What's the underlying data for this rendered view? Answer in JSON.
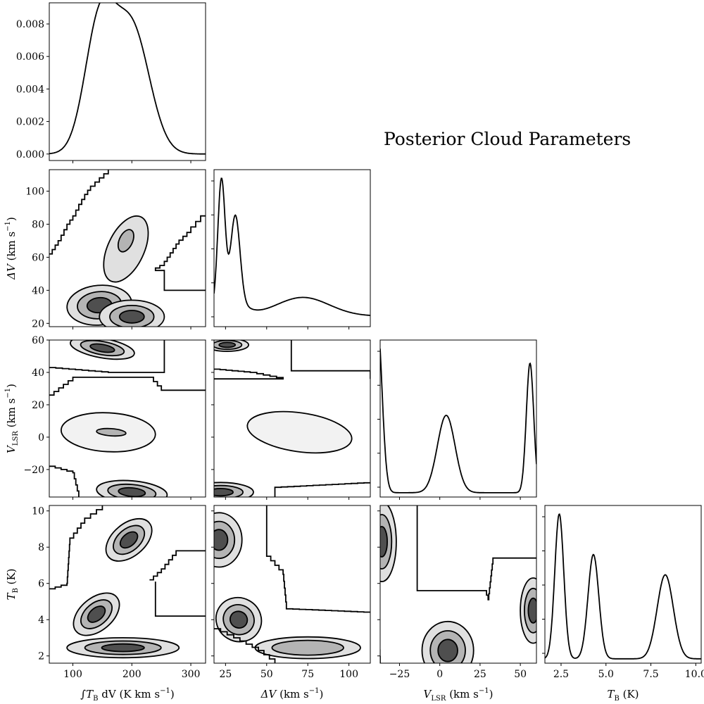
{
  "title": "Posterior Cloud Parameters",
  "colors": {
    "line": "#000000",
    "fill_levels": [
      "#f2f2f2",
      "#e0e0e0",
      "#b4b4b4",
      "#4f4f4f"
    ]
  },
  "chart_data": {
    "type": "corner",
    "params": [
      {
        "key": "flux",
        "label": "∫T B dV  (K km s⁻¹)",
        "range": [
          60,
          325
        ],
        "ticks": [
          100,
          200,
          300
        ],
        "ticklabels": [
          "100",
          "200",
          "300"
        ]
      },
      {
        "key": "dv",
        "label": "ΔV  (km s⁻¹)",
        "range": [
          18,
          113
        ],
        "ticks": [
          25,
          50,
          75,
          100
        ],
        "ticklabels": [
          "25",
          "50",
          "75",
          "100"
        ]
      },
      {
        "key": "vlsr",
        "label": "V LSR  (km s⁻¹)",
        "range": [
          -37,
          60
        ],
        "ticks": [
          -25,
          0,
          25,
          50
        ],
        "ticklabels": [
          "−25",
          "0",
          "25",
          "50"
        ]
      },
      {
        "key": "tb",
        "label": "T B  (K)",
        "range": [
          1.6,
          10.3
        ],
        "ticks": [
          2.5,
          5.0,
          7.5,
          10.0
        ],
        "ticklabels": [
          "2.5",
          "5.0",
          "7.5",
          "10.0"
        ]
      }
    ],
    "row_axes": {
      "dv": {
        "ticks": [
          20,
          40,
          60,
          80,
          100
        ],
        "ticklabels": [
          "20",
          "40",
          "60",
          "80",
          "100"
        ]
      },
      "vlsr": {
        "ticks": [
          -20,
          0,
          20,
          40,
          60
        ],
        "ticklabels": [
          "−20",
          "0",
          "20",
          "40",
          "60"
        ]
      },
      "tb": {
        "ticks": [
          2,
          4,
          6,
          8,
          10
        ],
        "ticklabels": [
          "2",
          "4",
          "6",
          "8",
          "10"
        ]
      }
    },
    "label_text": {
      "flux": {
        "pre": "∫",
        "sym": "T",
        "sub": "B",
        "post": " dV  (K km s",
        "exp": "−1",
        "end": ")"
      },
      "dv": {
        "pre": "",
        "sym": "ΔV",
        "sub": "",
        "post": "  (km s",
        "exp": "−1",
        "end": ")"
      },
      "vlsr": {
        "pre": "",
        "sym": "V",
        "sub": "LSR",
        "post": "  (km s",
        "exp": "−1",
        "end": ")"
      },
      "tb": {
        "pre": "",
        "sym": "T",
        "sub": "B",
        "post": "  (K)",
        "exp": "",
        "end": ""
      }
    },
    "flux_density": {
      "ylim": [
        -0.0004,
        0.0093
      ],
      "yticks": [
        0.0,
        0.002,
        0.004,
        0.006,
        0.008
      ],
      "yticklabels": [
        "0.000",
        "0.002",
        "0.004",
        "0.006",
        "0.008"
      ],
      "components": [
        {
          "mu": 145,
          "sigma": 25,
          "amp": 0.0078
        },
        {
          "mu": 200,
          "sigma": 30,
          "amp": 0.0077
        }
      ]
    },
    "dv_density": {
      "components": [
        {
          "mu": 22.5,
          "sigma": 2.2,
          "amp": 0.8
        },
        {
          "mu": 31,
          "sigma": 2.8,
          "amp": 0.55
        },
        {
          "mu": 28,
          "sigma": 8,
          "amp": 0.1
        },
        {
          "mu": 72,
          "sigma": 16,
          "amp": 0.12
        }
      ],
      "baseline": 0.04
    },
    "vlsr_density": {
      "components": [
        {
          "mu": -39,
          "sigma": 3,
          "amp": 1.0
        },
        {
          "mu": 4,
          "sigma": 5.5,
          "amp": 0.43
        },
        {
          "mu": 56,
          "sigma": 2.3,
          "amp": 0.72
        }
      ],
      "baseline": 0.0
    },
    "tb_density": {
      "components": [
        {
          "mu": 2.4,
          "sigma": 0.25,
          "amp": 1.0
        },
        {
          "mu": 4.3,
          "sigma": 0.3,
          "amp": 0.72
        },
        {
          "mu": 8.3,
          "sigma": 0.45,
          "amp": 0.58
        }
      ],
      "baseline": 0.0
    },
    "contours": {
      "dv_flux": [
        {
          "c": [
            190,
            65
          ],
          "r": [
            60,
            11
          ],
          "angle": 65,
          "levels": [
            1
          ]
        },
        {
          "c": [
            190,
            70
          ],
          "r": [
            20,
            4
          ],
          "angle": 65,
          "levels": [
            2
          ]
        },
        {
          "c": [
            145,
            31
          ],
          "r": [
            55,
            12
          ],
          "angle": 5,
          "levels": [
            1,
            2,
            3
          ]
        },
        {
          "c": [
            200,
            24
          ],
          "r": [
            55,
            10
          ],
          "angle": 0,
          "levels": [
            1,
            2,
            3
          ]
        }
      ],
      "vlsr_flux": [
        {
          "c": [
            150,
            55
          ],
          "r": [
            55,
            6
          ],
          "angle": -10,
          "levels": [
            1,
            2,
            3
          ]
        },
        {
          "c": [
            160,
            3
          ],
          "r": [
            80,
            12
          ],
          "angle": -3,
          "levels": [
            0
          ]
        },
        {
          "c": [
            165,
            3
          ],
          "r": [
            25,
            2.2
          ],
          "angle": -4,
          "levels": [
            2
          ]
        },
        {
          "c": [
            200,
            -34
          ],
          "r": [
            60,
            7
          ],
          "angle": -5,
          "levels": [
            1,
            2,
            3
          ]
        }
      ],
      "tb_flux": [
        {
          "c": [
            195,
            8.4
          ],
          "r": [
            45,
            0.9
          ],
          "angle": 40,
          "levels": [
            1,
            2,
            3
          ]
        },
        {
          "c": [
            140,
            4.3
          ],
          "r": [
            45,
            0.9
          ],
          "angle": 40,
          "levels": [
            1,
            2,
            3
          ]
        },
        {
          "c": [
            185,
            2.45
          ],
          "r": [
            95,
            0.55
          ],
          "angle": 0,
          "levels": [
            1,
            2,
            3
          ]
        }
      ],
      "vlsr_dv": [
        {
          "c": [
            26,
            57
          ],
          "r": [
            13,
            4
          ],
          "angle": 0,
          "levels": [
            1,
            2,
            3
          ]
        },
        {
          "c": [
            70,
            3
          ],
          "r": [
            32,
            12
          ],
          "angle": -8,
          "levels": [
            0
          ]
        },
        {
          "c": [
            22,
            -34
          ],
          "r": [
            20,
            6
          ],
          "angle": 0,
          "levels": [
            1,
            2,
            3
          ]
        }
      ],
      "tb_dv": [
        {
          "c": [
            21,
            8.4
          ],
          "r": [
            14,
            1.5
          ],
          "angle": 0,
          "levels": [
            1,
            2,
            3
          ]
        },
        {
          "c": [
            33,
            4.0
          ],
          "r": [
            14,
            1.2
          ],
          "angle": -30,
          "levels": [
            1,
            2,
            3
          ]
        },
        {
          "c": [
            75,
            2.45
          ],
          "r": [
            32,
            0.6
          ],
          "angle": 0,
          "levels": [
            1,
            2
          ]
        }
      ],
      "tb_vlsr": [
        {
          "c": [
            -36,
            8.3
          ],
          "r": [
            9,
            2.2
          ],
          "angle": 0,
          "levels": [
            1,
            2,
            3
          ]
        },
        {
          "c": [
            5,
            2.3
          ],
          "r": [
            16,
            1.6
          ],
          "angle": 0,
          "levels": [
            1,
            2,
            3
          ]
        },
        {
          "c": [
            58,
            4.5
          ],
          "r": [
            8,
            1.8
          ],
          "angle": 0,
          "levels": [
            1,
            2,
            3
          ]
        }
      ]
    },
    "boundaries": {
      "dv_flux": [
        [
          [
            60,
            62
          ],
          [
            75,
            70
          ],
          [
            90,
            80
          ],
          [
            100,
            85
          ],
          [
            110,
            92
          ],
          [
            120,
            98
          ],
          [
            130,
            103
          ],
          [
            145,
            108
          ],
          [
            160,
            113
          ]
        ],
        [
          [
            325,
            85
          ],
          [
            300,
            75
          ],
          [
            280,
            68
          ],
          [
            265,
            60
          ],
          [
            255,
            55
          ],
          [
            240,
            52
          ],
          [
            255,
            52
          ],
          [
            255,
            40
          ],
          [
            325,
            40
          ]
        ]
      ],
      "vlsr_flux": [
        [
          [
            60,
            43
          ],
          [
            160,
            40
          ],
          [
            255,
            40
          ],
          [
            255,
            60
          ]
        ],
        [
          [
            60,
            26
          ],
          [
            100,
            37
          ],
          [
            230,
            37
          ],
          [
            250,
            29
          ],
          [
            325,
            29
          ]
        ],
        [
          [
            60,
            -18
          ],
          [
            100,
            -22
          ],
          [
            110,
            -37
          ]
        ]
      ],
      "tb_flux": [
        [
          [
            60,
            5.7
          ],
          [
            90,
            6.0
          ],
          [
            95,
            8.5
          ],
          [
            120,
            9.6
          ],
          [
            150,
            10.3
          ]
        ],
        [
          [
            230,
            6.2
          ],
          [
            250,
            6.8
          ],
          [
            275,
            7.8
          ],
          [
            325,
            7.8
          ]
        ],
        [
          [
            240,
            6.1
          ],
          [
            240,
            4.2
          ],
          [
            325,
            4.2
          ]
        ]
      ],
      "vlsr_dv": [
        [
          [
            18,
            42
          ],
          [
            40,
            40
          ],
          [
            60,
            36
          ],
          [
            18,
            36
          ]
        ],
        [
          [
            65,
            60
          ],
          [
            65,
            41
          ],
          [
            113,
            41
          ],
          [
            113,
            36
          ]
        ],
        [
          [
            55,
            -37
          ],
          [
            55,
            -31
          ],
          [
            113,
            -28
          ]
        ]
      ],
      "tb_dv": [
        [
          [
            18,
            3.5
          ],
          [
            30,
            3.0
          ],
          [
            45,
            2.3
          ],
          [
            55,
            1.6
          ]
        ],
        [
          [
            50,
            10.3
          ],
          [
            50,
            7.5
          ],
          [
            60,
            6.5
          ],
          [
            62,
            4.6
          ],
          [
            113,
            4.4
          ]
        ]
      ],
      "tb_vlsr": [
        [
          [
            -38,
            4.5
          ],
          [
            -37,
            1.6
          ]
        ],
        [
          [
            -14,
            10.3
          ],
          [
            -14,
            5.6
          ],
          [
            28,
            5.6
          ],
          [
            30,
            5.1
          ],
          [
            33,
            7.4
          ],
          [
            62,
            7.4
          ]
        ]
      ]
    }
  }
}
